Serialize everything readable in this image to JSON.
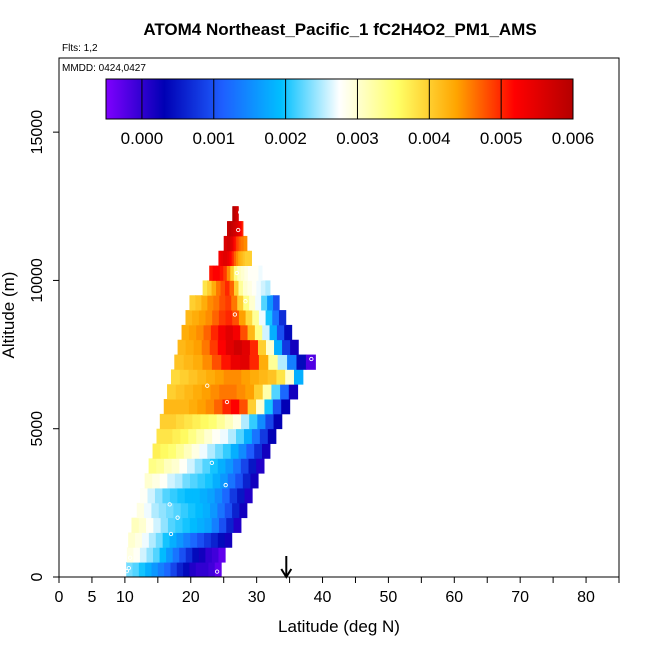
{
  "chart_data": {
    "type": "heatmap",
    "title": "ATOM4 Northeast_Pacific_1 fC2H4O2_PM1_AMS",
    "flights_label": "Flts: 1,2",
    "dates_label": "MMDD: 0424,0427",
    "xlabel": "Latitude (deg N)",
    "ylabel": "Altitude (m)",
    "xlim": [
      0,
      85
    ],
    "ylim": [
      0,
      17500
    ],
    "x_ticks": [
      "0",
      "5",
      "10",
      "20",
      "30",
      "40",
      "50",
      "60",
      "70",
      "80"
    ],
    "x_tick_values": [
      0,
      5,
      10,
      20,
      30,
      40,
      50,
      60,
      70,
      80
    ],
    "x_minor_ticks": [
      15,
      25,
      35,
      45,
      55,
      65,
      75,
      85
    ],
    "y_ticks": [
      "0",
      "5000",
      "10000",
      "15000"
    ],
    "y_tick_values": [
      0,
      5000,
      10000,
      15000
    ],
    "colorbar": {
      "ticks": [
        "0.000",
        "0.001",
        "0.002",
        "0.003",
        "0.004",
        "0.005",
        "0.006"
      ],
      "tick_values": [
        0,
        0.001,
        0.002,
        0.003,
        0.004,
        0.005,
        0.006
      ],
      "range": [
        -0.0005,
        0.006
      ],
      "colors": [
        "#7f00ff",
        "#0000b4",
        "#1e5fff",
        "#00bfff",
        "#ffffff",
        "#ffff66",
        "#ffa500",
        "#ff0000",
        "#b40000"
      ]
    },
    "marker_latitude": 34.5,
    "bands": [
      {
        "alt": 250,
        "start": 10.2,
        "end": 24.6,
        "values": [
          0.0023,
          0.0022,
          0.002,
          0.0018,
          0.0016,
          0.0014,
          0.0012,
          0.0009,
          0.0006,
          0.0004,
          0.0001,
          0.0,
          0.0,
          -0.0001,
          -0.0003
        ]
      },
      {
        "alt": 750,
        "start": 10.3,
        "end": 25.2,
        "values": [
          0.0029,
          0.0028,
          0.0026,
          0.0024,
          0.0022,
          0.0019,
          0.0016,
          0.0013,
          0.001,
          0.0007,
          0.0004,
          0.0002,
          0.0,
          -0.0001,
          -0.0003
        ]
      },
      {
        "alt": 1250,
        "start": 10.5,
        "end": 26.2,
        "values": [
          0.003,
          0.0029,
          0.0027,
          0.0025,
          0.0023,
          0.002,
          0.0018,
          0.0016,
          0.0014,
          0.0012,
          0.001,
          0.0008,
          0.0006,
          0.0004,
          0.0002
        ]
      },
      {
        "alt": 1750,
        "start": 11.0,
        "end": 27.6,
        "values": [
          0.0031,
          0.003,
          0.0028,
          0.0026,
          0.0024,
          0.0022,
          0.0021,
          0.002,
          0.0019,
          0.0018,
          0.0017,
          0.0014,
          0.001,
          0.0006,
          0.0001
        ]
      },
      {
        "alt": 2250,
        "start": 11.8,
        "end": 28.5,
        "values": [
          0.0029,
          0.0027,
          0.0025,
          0.0024,
          0.0023,
          0.0022,
          0.0021,
          0.002,
          0.0019,
          0.0018,
          0.0016,
          0.0013,
          0.001,
          0.0006,
          0.0002
        ]
      },
      {
        "alt": 2750,
        "start": 12.3,
        "end": 29.3,
        "values": [
          0.0028,
          0.0026,
          0.0024,
          0.0022,
          0.0021,
          0.002,
          0.0019,
          0.0019,
          0.0018,
          0.0017,
          0.0015,
          0.0012,
          0.0008,
          0.0005,
          0.0001
        ]
      },
      {
        "alt": 3250,
        "start": 13.0,
        "end": 30.2,
        "values": [
          0.003,
          0.0029,
          0.0028,
          0.0026,
          0.0025,
          0.0023,
          0.0022,
          0.0021,
          0.002,
          0.0018,
          0.0016,
          0.0013,
          0.001,
          0.0006,
          0.0002
        ]
      },
      {
        "alt": 3750,
        "start": 13.6,
        "end": 31.1,
        "values": [
          0.0034,
          0.0033,
          0.0031,
          0.003,
          0.0028,
          0.0026,
          0.0024,
          0.0022,
          0.002,
          0.0018,
          0.0016,
          0.0013,
          0.0009,
          0.0005,
          0.0001
        ]
      },
      {
        "alt": 4250,
        "start": 14.2,
        "end": 32.0,
        "values": [
          0.0037,
          0.0036,
          0.0035,
          0.0033,
          0.0031,
          0.0029,
          0.0027,
          0.0025,
          0.0023,
          0.0021,
          0.0018,
          0.0015,
          0.0011,
          0.0007,
          0.0002
        ]
      },
      {
        "alt": 4750,
        "start": 14.8,
        "end": 32.9,
        "values": [
          0.0038,
          0.0038,
          0.0037,
          0.0036,
          0.0034,
          0.0032,
          0.003,
          0.0028,
          0.0027,
          0.0025,
          0.0022,
          0.0018,
          0.0013,
          0.0008,
          0.0003
        ]
      },
      {
        "alt": 5250,
        "start": 15.3,
        "end": 33.8,
        "values": [
          0.004,
          0.004,
          0.0039,
          0.0038,
          0.0037,
          0.0036,
          0.0035,
          0.0033,
          0.0031,
          0.0029,
          0.0025,
          0.0021,
          0.0015,
          0.0009,
          0.0003
        ]
      },
      {
        "alt": 5750,
        "start": 15.9,
        "end": 35.0,
        "values": [
          0.0042,
          0.0042,
          0.0042,
          0.0043,
          0.0044,
          0.0045,
          0.0047,
          0.005,
          0.0052,
          0.0048,
          0.004,
          0.003,
          0.002,
          0.001,
          0.0003
        ]
      },
      {
        "alt": 6250,
        "start": 16.4,
        "end": 36.2,
        "values": [
          0.004,
          0.0041,
          0.0042,
          0.0043,
          0.0044,
          0.0045,
          0.0046,
          0.0046,
          0.0045,
          0.0044,
          0.004,
          0.0032,
          0.0022,
          0.0012,
          0.0002
        ]
      },
      {
        "alt": 6750,
        "start": 17.0,
        "end": 37.0,
        "values": [
          0.0039,
          0.004,
          0.0041,
          0.0042,
          0.0043,
          0.0044,
          0.0045,
          0.0045,
          0.0044,
          0.0043,
          0.0042,
          0.0041,
          0.0038,
          0.003,
          0.0018
        ]
      },
      {
        "alt": 7250,
        "start": 17.5,
        "end": 38.9,
        "values": [
          0.0041,
          0.0042,
          0.0043,
          0.0045,
          0.0048,
          0.0051,
          0.0054,
          0.0055,
          0.005,
          0.0043,
          0.0033,
          0.0025,
          0.0014,
          0.0004,
          -0.0002
        ]
      },
      {
        "alt": 7750,
        "start": 18.0,
        "end": 36.3,
        "values": [
          0.0042,
          0.0043,
          0.0044,
          0.0046,
          0.0049,
          0.0052,
          0.0055,
          0.0057,
          0.0055,
          0.005,
          0.004,
          0.003,
          0.0018,
          0.0008,
          0.0002
        ]
      },
      {
        "alt": 8250,
        "start": 18.6,
        "end": 35.3,
        "values": [
          0.0043,
          0.0044,
          0.0045,
          0.0047,
          0.005,
          0.0053,
          0.0055,
          0.0053,
          0.0048,
          0.0042,
          0.0034,
          0.0026,
          0.0018,
          0.001,
          0.0004
        ]
      },
      {
        "alt": 8750,
        "start": 19.2,
        "end": 34.4,
        "values": [
          0.0042,
          0.0043,
          0.0044,
          0.0045,
          0.0047,
          0.0049,
          0.005,
          0.0048,
          0.0044,
          0.0039,
          0.0033,
          0.0027,
          0.002,
          0.0013,
          0.0007
        ]
      },
      {
        "alt": 9250,
        "start": 19.8,
        "end": 33.4,
        "values": [
          0.004,
          0.0041,
          0.0043,
          0.0045,
          0.0046,
          0.0048,
          0.0049,
          0.0046,
          0.004,
          0.0034,
          0.003,
          0.0027,
          0.0022,
          0.0016,
          0.001
        ]
      },
      {
        "alt": 9750,
        "start": 21.8,
        "end": 32.0,
        "values": [
          0.0038,
          0.004,
          0.0043,
          0.0046,
          0.0048,
          0.005,
          0.0047,
          0.004,
          0.0033,
          0.003,
          0.0029,
          0.0028,
          0.0027,
          0.0026,
          0.0025
        ]
      },
      {
        "alt": 10250,
        "start": 22.8,
        "end": 30.8,
        "values": [
          0.0051,
          0.0052,
          0.0052,
          0.0051,
          0.0049,
          0.0045,
          0.004,
          0.0034,
          0.0031,
          0.003,
          0.0029,
          0.0028,
          0.0028,
          0.0028,
          0.0027
        ]
      },
      {
        "alt": 10750,
        "start": 24.2,
        "end": 29.2,
        "values": [
          0.0053,
          0.0054,
          0.0055,
          0.0055,
          0.0054,
          0.0052,
          0.005,
          0.0047,
          0.0045,
          0.0043,
          0.0042,
          0.0041,
          0.004,
          0.004,
          0.004
        ]
      },
      {
        "alt": 11250,
        "start": 25.0,
        "end": 28.5,
        "values": [
          0.0056,
          0.0056,
          0.0057,
          0.0057,
          0.0056,
          0.0055,
          0.0053,
          0.0051,
          0.0049,
          0.0048,
          0.0047,
          0.0046,
          0.0046,
          0.0045,
          0.0045
        ]
      },
      {
        "alt": 11750,
        "start": 25.5,
        "end": 27.9,
        "values": [
          0.0058,
          0.0058,
          0.0059,
          0.0059,
          0.0058,
          0.0058,
          0.0057,
          0.0057,
          0.0056,
          0.0056,
          0.0055,
          0.0054,
          0.0053,
          0.0052,
          0.005
        ]
      },
      {
        "alt": 12250,
        "start": 26.3,
        "end": 27.2,
        "values": [
          0.006,
          0.006,
          0.006,
          0.006,
          0.0059,
          0.0059,
          0.0059,
          0.0058,
          0.0058,
          0.0058,
          0.0057,
          0.0057,
          0.0057,
          0.0056,
          0.0056
        ]
      }
    ],
    "points": [
      {
        "lat": 10.3,
        "alt": 200
      },
      {
        "lat": 10.6,
        "alt": 300
      },
      {
        "lat": 10.8,
        "alt": 650
      },
      {
        "lat": 24.0,
        "alt": 180
      },
      {
        "lat": 17.0,
        "alt": 1450
      },
      {
        "lat": 18.0,
        "alt": 2000
      },
      {
        "lat": 16.8,
        "alt": 2450
      },
      {
        "lat": 25.3,
        "alt": 3100
      },
      {
        "lat": 23.2,
        "alt": 3850
      },
      {
        "lat": 25.5,
        "alt": 5900
      },
      {
        "lat": 22.5,
        "alt": 6450
      },
      {
        "lat": 38.3,
        "alt": 7350
      },
      {
        "lat": 26.7,
        "alt": 8850
      },
      {
        "lat": 28.3,
        "alt": 9300
      },
      {
        "lat": 27.0,
        "alt": 10250
      },
      {
        "lat": 27.2,
        "alt": 11700
      },
      {
        "lat": 27.5,
        "alt": 12300
      }
    ]
  }
}
